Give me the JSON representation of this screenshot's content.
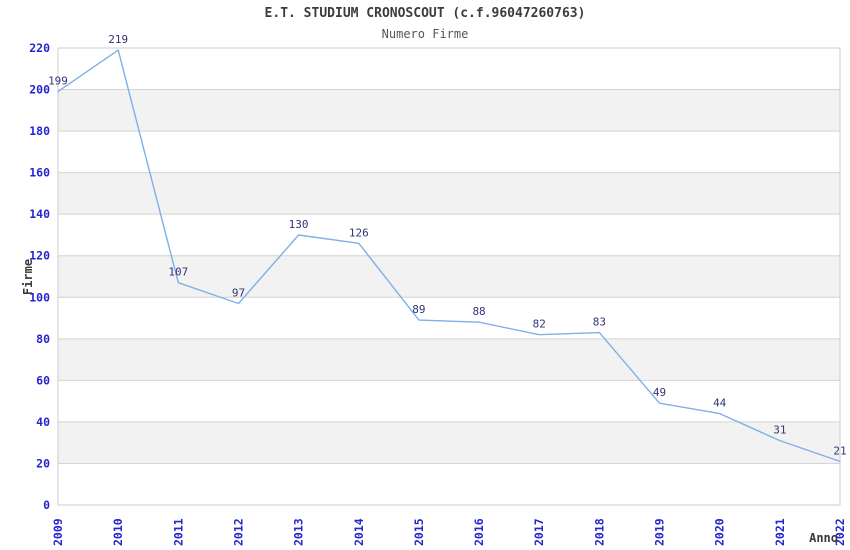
{
  "chart_data": {
    "type": "line",
    "title": "E.T. STUDIUM CRONOSCOUT (c.f.96047260763)",
    "subtitle": "Numero Firme",
    "xlabel": "Anno",
    "ylabel": "Firme",
    "categories": [
      "2009",
      "2010",
      "2011",
      "2012",
      "2013",
      "2014",
      "2015",
      "2016",
      "2017",
      "2018",
      "2019",
      "2020",
      "2021",
      "2022"
    ],
    "series": [
      {
        "name": "Numero Firme",
        "values": [
          199,
          219,
          107,
          97,
          130,
          126,
          89,
          88,
          82,
          83,
          49,
          44,
          31,
          21
        ]
      }
    ],
    "point_labels": [
      "199",
      "219",
      "107",
      "97",
      "130",
      "126",
      "89",
      "88",
      "82",
      "83",
      "49",
      "44",
      "31",
      "21"
    ],
    "ylim": [
      0,
      220
    ],
    "ytick_step": 20,
    "ytick_labels": [
      "0",
      "20",
      "40",
      "60",
      "80",
      "100",
      "120",
      "140",
      "160",
      "180",
      "200",
      "220"
    ],
    "grid": true,
    "legend_position": "none",
    "band_fill_alternate": true,
    "colors": {
      "line": "#7fb0e8",
      "point_label": "#333377",
      "axis_tick_label": "#2525cf",
      "gridline": "#d4d4d4",
      "plot_border": "#cccccc",
      "band_fill": "#f2f2f2",
      "title": "#3c3c3c",
      "subtitle": "#565656",
      "axis_title": "#3a3a3a",
      "background": "#ffffff"
    }
  }
}
